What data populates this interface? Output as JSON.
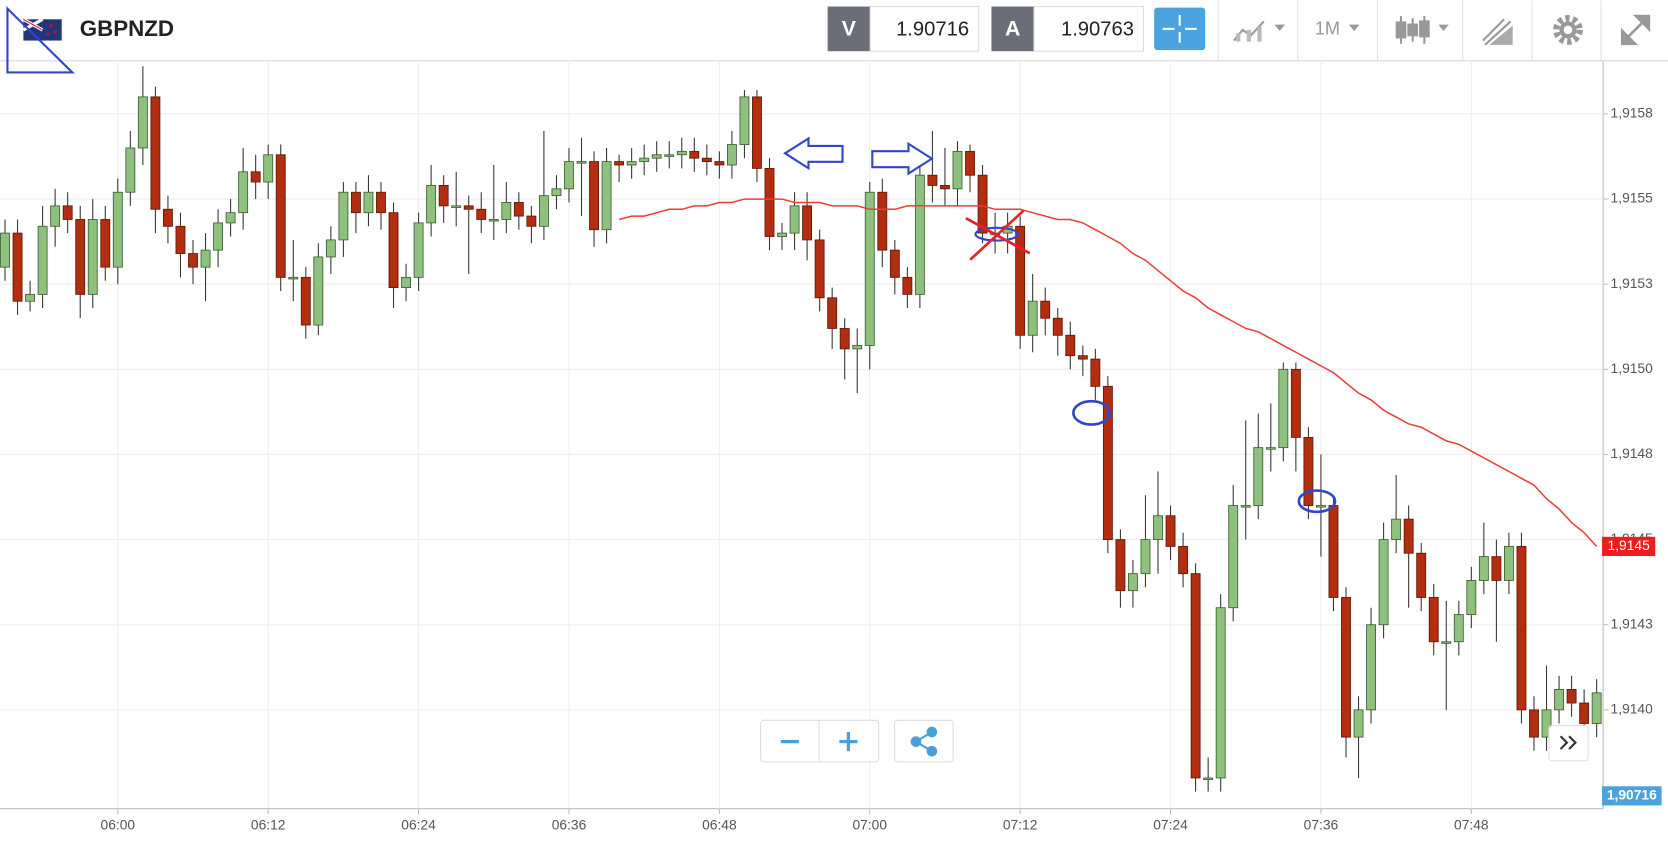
{
  "toolbar": {
    "symbol": "GBPNZD",
    "bid_label": "V",
    "bid": "1.90716",
    "ask_label": "A",
    "ask": "1.90763",
    "interval": "1M"
  },
  "chart_data": {
    "type": "candlestick",
    "categories": [
      null,
      null,
      null,
      null,
      null,
      null,
      null,
      null,
      null,
      "06:00",
      null,
      null,
      null,
      null,
      null,
      null,
      null,
      null,
      null,
      null,
      null,
      "06:12",
      null,
      null,
      null,
      null,
      null,
      null,
      null,
      null,
      null,
      null,
      null,
      "06:24",
      null,
      null,
      null,
      null,
      null,
      null,
      null,
      null,
      null,
      null,
      null,
      "06:36",
      null,
      null,
      null,
      null,
      null,
      null,
      null,
      null,
      null,
      null,
      null,
      "06:48",
      null,
      null,
      null,
      null,
      null,
      null,
      null,
      null,
      null,
      null,
      null,
      "07:00",
      null,
      null,
      null,
      null,
      null,
      null,
      null,
      null,
      null,
      null,
      null,
      "07:12",
      null,
      null,
      null,
      null,
      null,
      null,
      null,
      null,
      null,
      null,
      null,
      "07:24",
      null,
      null,
      null,
      null,
      null,
      null,
      null,
      null,
      null,
      null,
      null,
      "07:36",
      null,
      null,
      null,
      null,
      null,
      null,
      null,
      null,
      null,
      null,
      null,
      "07:48",
      null,
      null,
      null,
      null,
      null,
      null,
      null,
      null,
      null,
      null
    ],
    "open": [
      1.9153,
      1.9154,
      1.9152,
      1.91522,
      1.91542,
      1.91548,
      1.91544,
      1.91522,
      1.91544,
      1.9153,
      1.91552,
      1.91565,
      1.9158,
      1.91547,
      1.91542,
      1.91534,
      1.9153,
      1.91535,
      1.91543,
      1.91546,
      1.91558,
      1.91555,
      1.91563,
      1.91527,
      1.91527,
      1.91513,
      1.91533,
      1.91538,
      1.91552,
      1.91546,
      1.91552,
      1.91546,
      1.91524,
      1.91527,
      1.91543,
      1.91554,
      1.91548,
      1.91548,
      1.91547,
      1.91544,
      1.91544,
      1.91549,
      1.91545,
      1.91542,
      1.91551,
      1.91553,
      1.91561,
      1.91561,
      1.91541,
      1.91561,
      1.9156,
      1.91561,
      1.91562,
      1.91563,
      1.91563,
      1.91564,
      1.91562,
      1.91561,
      1.9156,
      1.91566,
      1.9158,
      1.91559,
      1.91539,
      1.9154,
      1.91548,
      1.91538,
      1.91521,
      1.91512,
      1.91506,
      1.91507,
      1.91552,
      1.91535,
      1.91527,
      1.91522,
      1.91557,
      1.91554,
      1.91553,
      1.91564,
      1.91557,
      1.9154,
      1.9154,
      1.91542,
      1.9151,
      1.9152,
      1.91515,
      1.9151,
      1.91504,
      1.91503,
      1.91495,
      1.9145,
      1.91435,
      1.9144,
      1.9145,
      1.91457,
      1.91448,
      1.9144,
      1.9138,
      1.9138,
      1.9143,
      1.9146,
      1.9146,
      1.91477,
      1.91477,
      1.915,
      1.9148,
      1.9146,
      1.9146,
      1.91433,
      1.91392,
      1.914,
      1.91425,
      1.9145,
      1.91456,
      1.91446,
      1.91433,
      1.9142,
      1.9142,
      1.91428,
      1.91438,
      1.91445,
      1.91438,
      1.91448,
      1.914,
      1.91392,
      1.914,
      1.91406,
      1.91402,
      1.91396
    ],
    "high": [
      1.91544,
      1.91544,
      1.91526,
      1.91548,
      1.91553,
      1.91552,
      1.91548,
      1.9155,
      1.91548,
      1.91556,
      1.9157,
      1.91589,
      1.91583,
      1.91551,
      1.91546,
      1.91538,
      1.9154,
      1.91547,
      1.9155,
      1.91565,
      1.91563,
      1.91566,
      1.91566,
      1.91538,
      1.9153,
      1.91537,
      1.91542,
      1.91555,
      1.91555,
      1.91557,
      1.91555,
      1.91549,
      1.91531,
      1.91546,
      1.9156,
      1.91557,
      1.91558,
      1.91551,
      1.91552,
      1.9156,
      1.91555,
      1.91552,
      1.91548,
      1.9157,
      1.91557,
      1.91565,
      1.91568,
      1.91564,
      1.91565,
      1.91563,
      1.91565,
      1.91566,
      1.91567,
      1.91567,
      1.91568,
      1.91568,
      1.91566,
      1.91564,
      1.9157,
      1.91582,
      1.91582,
      1.91562,
      1.91543,
      1.91552,
      1.91552,
      1.91541,
      1.91524,
      1.91515,
      1.91512,
      1.91555,
      1.91556,
      1.91538,
      1.9153,
      1.9156,
      1.9157,
      1.91565,
      1.91567,
      1.91566,
      1.9156,
      1.91546,
      1.91546,
      1.91545,
      1.91528,
      1.91524,
      1.91518,
      1.91514,
      1.91507,
      1.91506,
      1.91498,
      1.91453,
      1.91444,
      1.91463,
      1.9147,
      1.9146,
      1.91452,
      1.91443,
      1.91386,
      1.91434,
      1.91466,
      1.91485,
      1.91487,
      1.9149,
      1.91502,
      1.91502,
      1.91483,
      1.91475,
      1.91463,
      1.91436,
      1.91404,
      1.9143,
      1.91455,
      1.91469,
      1.9146,
      1.91449,
      1.91437,
      1.91432,
      1.91432,
      1.91442,
      1.91455,
      1.9145,
      1.91452,
      1.91452,
      1.91404,
      1.91413,
      1.9141,
      1.9141,
      1.91406,
      1.91409
    ],
    "low": [
      1.91526,
      1.91516,
      1.91517,
      1.91518,
      1.91536,
      1.9154,
      1.91515,
      1.91518,
      1.91526,
      1.91525,
      1.91548,
      1.9156,
      1.9154,
      1.91537,
      1.91527,
      1.91525,
      1.9152,
      1.9153,
      1.91539,
      1.91541,
      1.9155,
      1.9155,
      1.91523,
      1.9152,
      1.91509,
      1.9151,
      1.91528,
      1.91533,
      1.9154,
      1.91542,
      1.91541,
      1.91518,
      1.9152,
      1.91523,
      1.91539,
      1.91543,
      1.91542,
      1.91528,
      1.9154,
      1.91538,
      1.9154,
      1.91541,
      1.91537,
      1.91538,
      1.91547,
      1.91549,
      1.91545,
      1.91536,
      1.91537,
      1.91555,
      1.91556,
      1.91557,
      1.91558,
      1.91559,
      1.91559,
      1.91558,
      1.91557,
      1.91556,
      1.91556,
      1.91562,
      1.91555,
      1.91535,
      1.91535,
      1.91535,
      1.91532,
      1.91517,
      1.91506,
      1.91497,
      1.91493,
      1.915,
      1.9153,
      1.91522,
      1.91518,
      1.91518,
      1.91549,
      1.91548,
      1.91548,
      1.91552,
      1.91537,
      1.91534,
      1.91534,
      1.91506,
      1.91505,
      1.9151,
      1.91504,
      1.915,
      1.91498,
      1.91491,
      1.91446,
      1.9143,
      1.9143,
      1.91436,
      1.9144,
      1.91444,
      1.91436,
      1.91376,
      1.91376,
      1.91376,
      1.91426,
      1.9145,
      1.91456,
      1.9147,
      1.91473,
      1.9147,
      1.91456,
      1.91445,
      1.91429,
      1.91386,
      1.9138,
      1.91396,
      1.91421,
      1.91446,
      1.9143,
      1.91429,
      1.91416,
      1.914,
      1.91416,
      1.91424,
      1.91434,
      1.9142,
      1.91434,
      1.91396,
      1.91388,
      1.91388,
      1.91396,
      1.91398,
      1.91392,
      1.91392
    ],
    "close": [
      1.9154,
      1.9152,
      1.91522,
      1.91542,
      1.91548,
      1.91544,
      1.91522,
      1.91544,
      1.9153,
      1.91552,
      1.91565,
      1.9158,
      1.91547,
      1.91542,
      1.91534,
      1.9153,
      1.91535,
      1.91543,
      1.91546,
      1.91558,
      1.91555,
      1.91563,
      1.91527,
      1.91527,
      1.91513,
      1.91533,
      1.91538,
      1.91552,
      1.91546,
      1.91552,
      1.91546,
      1.91524,
      1.91527,
      1.91543,
      1.91554,
      1.91548,
      1.91548,
      1.91547,
      1.91544,
      1.91544,
      1.91549,
      1.91545,
      1.91542,
      1.91551,
      1.91553,
      1.91561,
      1.91561,
      1.91541,
      1.91561,
      1.9156,
      1.91561,
      1.91562,
      1.91563,
      1.91563,
      1.91564,
      1.91562,
      1.91561,
      1.9156,
      1.91566,
      1.9158,
      1.91559,
      1.91539,
      1.9154,
      1.91548,
      1.91538,
      1.91521,
      1.91512,
      1.91506,
      1.91507,
      1.91552,
      1.91535,
      1.91527,
      1.91522,
      1.91557,
      1.91554,
      1.91553,
      1.91564,
      1.91557,
      1.9154,
      1.9154,
      1.91542,
      1.9151,
      1.9152,
      1.91515,
      1.9151,
      1.91504,
      1.91503,
      1.91495,
      1.9145,
      1.91435,
      1.9144,
      1.9145,
      1.91457,
      1.91448,
      1.9144,
      1.9138,
      1.9138,
      1.9143,
      1.9146,
      1.9146,
      1.91477,
      1.91477,
      1.915,
      1.9148,
      1.9146,
      1.9146,
      1.91433,
      1.91392,
      1.914,
      1.91425,
      1.9145,
      1.91456,
      1.91446,
      1.91433,
      1.9142,
      1.9142,
      1.91428,
      1.91438,
      1.91445,
      1.91438,
      1.91448,
      1.914,
      1.91392,
      1.914,
      1.91406,
      1.91402,
      1.91396,
      1.91405
    ],
    "up_color": "#8fc17e",
    "down_color": "#b32d10",
    "line": {
      "color": "#ee3b35",
      "values": [
        null,
        null,
        null,
        null,
        null,
        null,
        null,
        null,
        null,
        null,
        null,
        null,
        null,
        null,
        null,
        null,
        null,
        null,
        null,
        null,
        null,
        null,
        null,
        null,
        null,
        null,
        null,
        null,
        null,
        null,
        null,
        null,
        null,
        null,
        null,
        null,
        null,
        null,
        null,
        null,
        null,
        null,
        null,
        null,
        null,
        null,
        null,
        null,
        null,
        1.91544,
        1.91545,
        1.91545,
        1.91546,
        1.91547,
        1.91547,
        1.91548,
        1.91548,
        1.91549,
        1.91549,
        1.9155,
        1.9155,
        1.9155,
        1.9155,
        1.91549,
        1.91549,
        1.91549,
        1.91548,
        1.91548,
        1.91548,
        1.91547,
        1.91547,
        1.91547,
        1.91548,
        1.91548,
        1.91548,
        1.91548,
        1.91548,
        1.91548,
        1.91548,
        1.91547,
        1.91547,
        1.91547,
        1.91546,
        1.91545,
        1.91544,
        1.91544,
        1.91543,
        1.91541,
        1.91539,
        1.91537,
        1.91534,
        1.91532,
        1.91529,
        1.91526,
        1.91523,
        1.91521,
        1.91518,
        1.91516,
        1.91514,
        1.91512,
        1.91511,
        1.91509,
        1.91507,
        1.91505,
        1.91503,
        1.91501,
        1.91499,
        1.91496,
        1.91493,
        1.91491,
        1.91488,
        1.91486,
        1.91484,
        1.91483,
        1.91481,
        1.91479,
        1.91478,
        1.91476,
        1.91474,
        1.91472,
        1.9147,
        1.91468,
        1.91466,
        1.91462,
        1.91459,
        1.91455,
        1.91452,
        1.91448
      ]
    },
    "line_label": {
      "value": 1.91448,
      "label": "1,9145"
    },
    "bid_axis_label": "1,90716",
    "ylim": [
      1.91371,
      1.915906
    ],
    "yticks": [
      {
        "value": 1.91575,
        "label": "1,9158"
      },
      {
        "value": 1.9155,
        "label": "1,9155"
      },
      {
        "value": 1.91525,
        "label": "1,9153"
      },
      {
        "value": 1.915,
        "label": "1,9150"
      },
      {
        "value": 1.91475,
        "label": "1,9148"
      },
      {
        "value": 1.9145,
        "label": "1,9145"
      },
      {
        "value": 1.91425,
        "label": "1,9143"
      },
      {
        "value": 1.914,
        "label": "1,9140"
      }
    ],
    "grid": true
  }
}
